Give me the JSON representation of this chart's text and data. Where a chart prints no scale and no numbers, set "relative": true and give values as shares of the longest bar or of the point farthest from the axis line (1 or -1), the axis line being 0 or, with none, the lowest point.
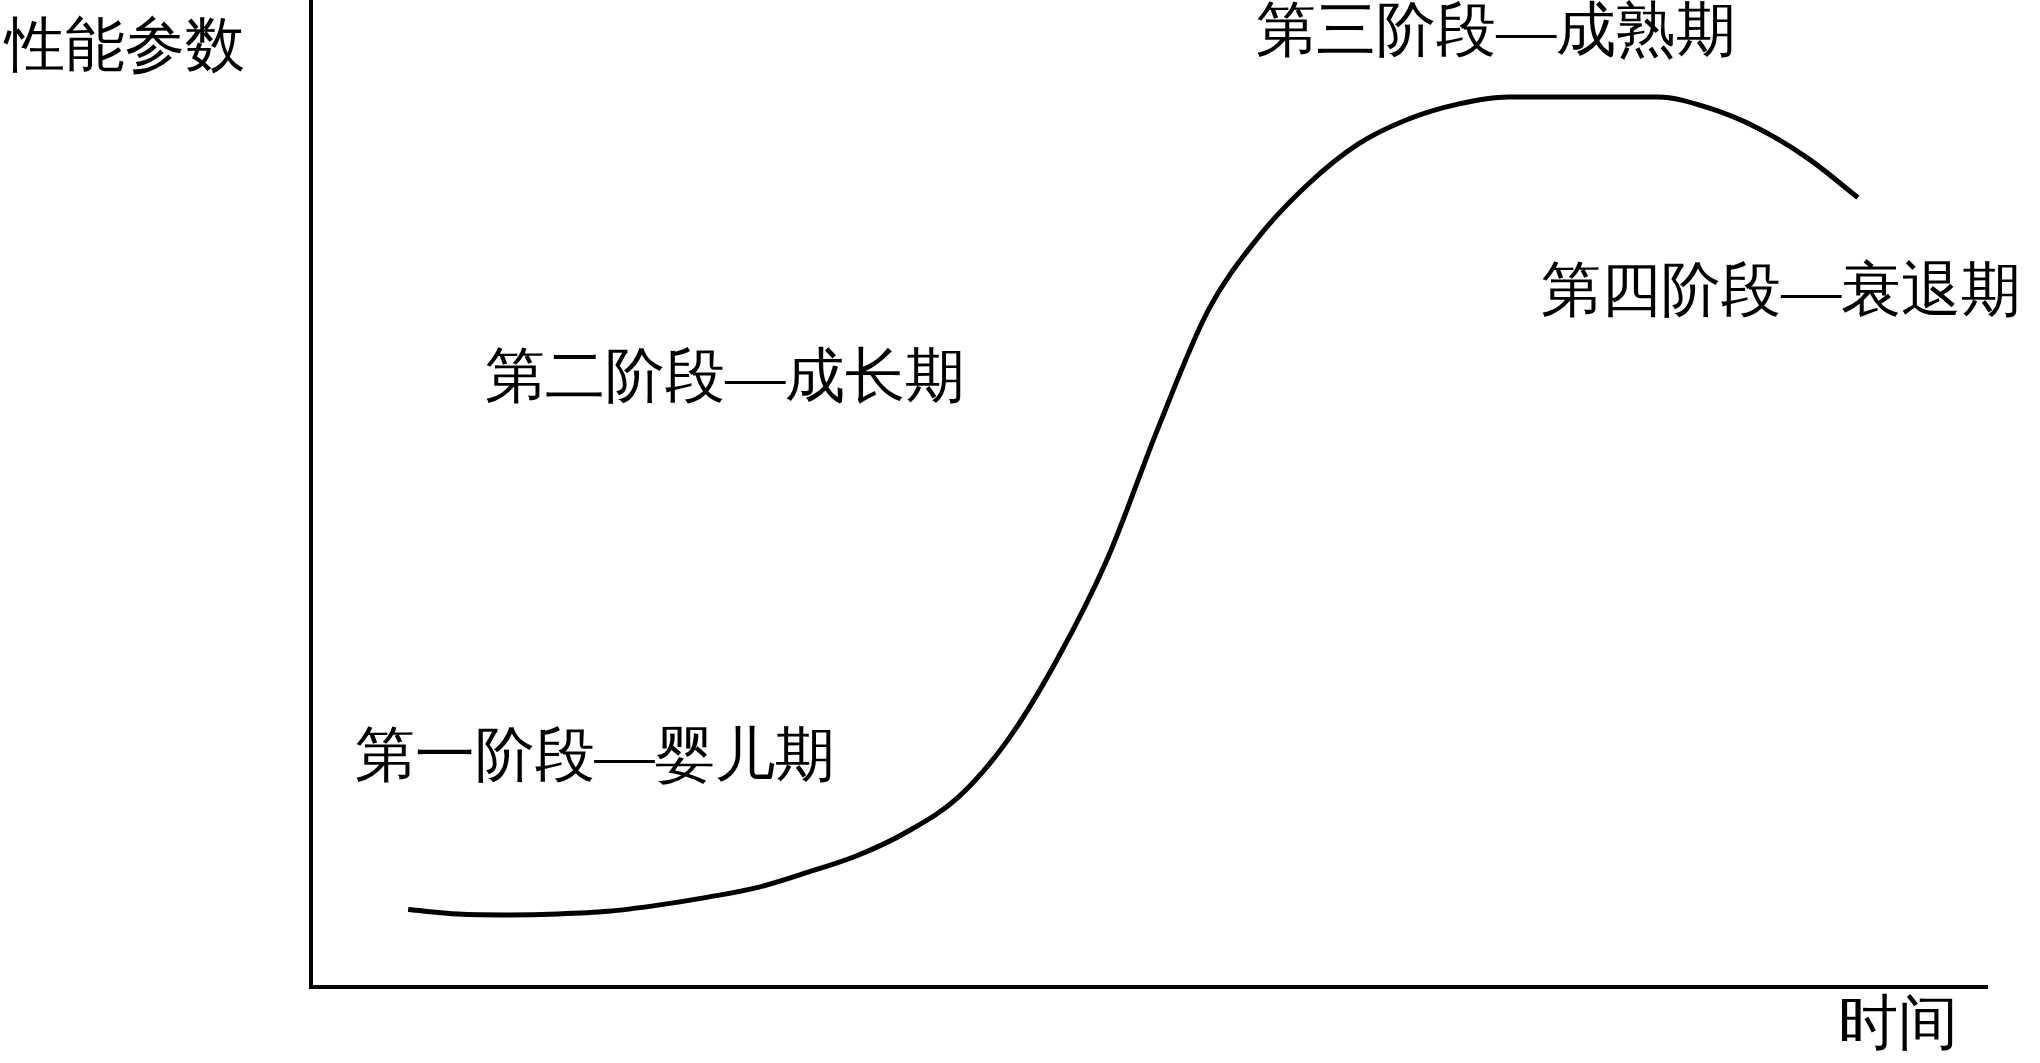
{
  "chart_data": {
    "type": "line",
    "relative": true,
    "xlabel": "时间",
    "ylabel": "性能参数",
    "categories": [
      null,
      null,
      null,
      null,
      null,
      null,
      null,
      null,
      null,
      null,
      null,
      null,
      null,
      null,
      null,
      null,
      null,
      null,
      null,
      null,
      null,
      null,
      null,
      null,
      null,
      null,
      null,
      null,
      null,
      null
    ],
    "values": [
      0.087,
      0.082,
      0.081,
      0.082,
      0.085,
      0.092,
      0.101,
      0.112,
      0.129,
      0.148,
      0.175,
      0.213,
      0.278,
      0.37,
      0.483,
      0.628,
      0.76,
      0.842,
      0.902,
      0.947,
      0.975,
      0.992,
      1,
      1,
      1,
      1,
      0.988,
      0.965,
      0.931,
      0.887
    ],
    "color": "#000000",
    "marker": "none",
    "line_style": "solid",
    "legend": false,
    "annotations": [
      "第一阶段—婴儿期",
      "第二阶段—成长期",
      "第三阶段—成熟期",
      "第四阶段—衰退期"
    ]
  }
}
